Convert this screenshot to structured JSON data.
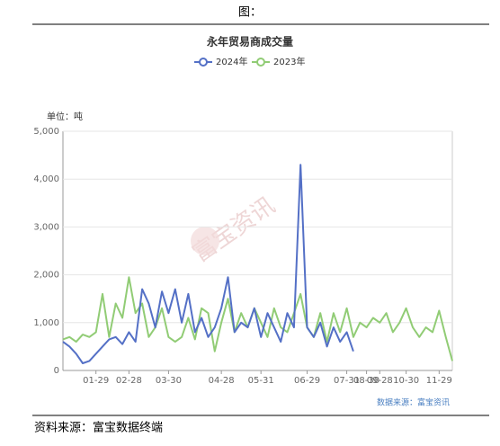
{
  "header": "图：",
  "footer": "资料来源：富宝数据终端",
  "chart_data": {
    "type": "line",
    "title": "永年贸易商成交量",
    "unit_label": "单位：吨",
    "watermark": "富宝资讯",
    "source": "数据来源：富宝资讯",
    "categories": [
      null,
      null,
      null,
      null,
      null,
      "01-29",
      null,
      null,
      null,
      null,
      "02-28",
      null,
      null,
      null,
      null,
      null,
      "03-30",
      null,
      null,
      null,
      null,
      null,
      null,
      null,
      "04-28",
      null,
      null,
      null,
      null,
      null,
      "05-31",
      null,
      null,
      null,
      null,
      null,
      null,
      "06-29",
      null,
      null,
      null,
      null,
      null,
      "07-31",
      null,
      null,
      "08-30",
      null,
      "09-28",
      null,
      null,
      null,
      "10-30",
      null,
      null,
      null,
      null,
      "11-29",
      null,
      null
    ],
    "series": [
      {
        "name": "2024年",
        "color": "#5470c6",
        "values": [
          600,
          500,
          350,
          150,
          200,
          350,
          500,
          650,
          700,
          550,
          800,
          600,
          1700,
          1400,
          900,
          1650,
          1200,
          1700,
          1000,
          1600,
          800,
          1100,
          700,
          900,
          1300,
          1950,
          800,
          1000,
          900,
          1300,
          700,
          1200,
          900,
          600,
          1200,
          900,
          4300,
          900,
          700,
          1000,
          500,
          900,
          600,
          800,
          400,
          null,
          null,
          null,
          null,
          null,
          null,
          null,
          null,
          null,
          null,
          null,
          null,
          null,
          null,
          null
        ]
      },
      {
        "name": "2023年",
        "color": "#91cc75",
        "values": [
          650,
          700,
          600,
          750,
          700,
          800,
          1600,
          700,
          1400,
          1100,
          1950,
          1200,
          1400,
          700,
          900,
          1300,
          700,
          600,
          700,
          1100,
          650,
          1300,
          1200,
          400,
          1000,
          1500,
          800,
          1200,
          900,
          1300,
          1000,
          700,
          1300,
          900,
          800,
          1200,
          1600,
          900,
          700,
          1200,
          600,
          1200,
          800,
          1300,
          700,
          1000,
          900,
          1100,
          1000,
          1200,
          800,
          1000,
          1300,
          900,
          700,
          900,
          800,
          1250,
          700,
          200
        ]
      }
    ],
    "ylim": [
      0,
      5000
    ],
    "yticks": [
      0,
      {
        "value": 1000,
        "label": "1,000"
      },
      {
        "value": 2000,
        "label": "2,000"
      },
      {
        "value": 3000,
        "label": "3,000"
      },
      {
        "value": 4000,
        "label": "4,000"
      },
      {
        "value": 5000,
        "label": "5,000"
      }
    ],
    "grid": true
  }
}
